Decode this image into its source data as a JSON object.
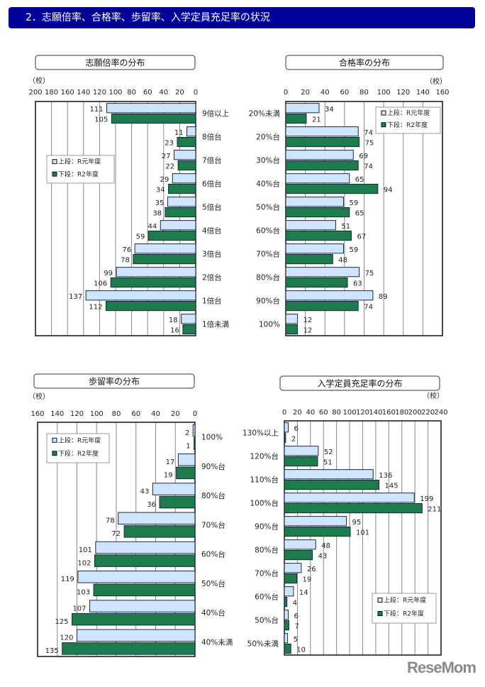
{
  "header": {
    "title": "2．志願倍率、合格率、歩留率、入学定員充足率の状況"
  },
  "watermark": "ReseMom",
  "colors": {
    "header_bg": "#000099",
    "series_r1": "#cfe5ff",
    "series_r2": "#1e7b4e",
    "bar_border": "#1a2a3a",
    "grid": "#888888"
  },
  "chart_data": [
    {
      "type": "bar",
      "orientation": "horizontal",
      "direction": "right-to-left",
      "title": "志願倍率の分布",
      "unit": "（校）",
      "xlim": [
        0,
        200
      ],
      "ticks": [
        "0",
        "20",
        "40",
        "60",
        "80",
        "100",
        "120",
        "140",
        "160",
        "180",
        "200"
      ],
      "categories": [
        "9倍以上",
        "8倍台",
        "7倍台",
        "6倍台",
        "5倍台",
        "4倍台",
        "3倍台",
        "2倍台",
        "1倍台",
        "1倍未満"
      ],
      "series": [
        {
          "name": "上段：R元年度",
          "values": [
            111,
            11,
            27,
            29,
            35,
            44,
            76,
            99,
            137,
            18
          ]
        },
        {
          "name": "下段：R2年度",
          "values": [
            105,
            23,
            22,
            34,
            38,
            59,
            78,
            106,
            112,
            16
          ]
        }
      ],
      "grid": true,
      "legend": "upper-left"
    },
    {
      "type": "bar",
      "orientation": "horizontal",
      "direction": "left-to-right",
      "title": "合格率の分布",
      "unit": "（校）",
      "xlim": [
        0,
        160
      ],
      "ticks": [
        "0",
        "20",
        "40",
        "60",
        "80",
        "100",
        "120",
        "140",
        "160"
      ],
      "categories": [
        "20%未満",
        "20%台",
        "30%台",
        "40%台",
        "50%台",
        "60%台",
        "70%台",
        "80%台",
        "90%台",
        "100%"
      ],
      "series": [
        {
          "name": "上段：R元年度",
          "values": [
            34,
            74,
            69,
            65,
            59,
            51,
            59,
            75,
            89,
            12
          ]
        },
        {
          "name": "下段：R2年度",
          "values": [
            21,
            75,
            74,
            94,
            65,
            67,
            48,
            63,
            74,
            12
          ]
        }
      ],
      "grid": true,
      "legend": "top-right"
    },
    {
      "type": "bar",
      "orientation": "horizontal",
      "direction": "right-to-left",
      "title": "歩留率の分布",
      "unit": "（校）",
      "xlim": [
        0,
        160
      ],
      "ticks": [
        "0",
        "20",
        "40",
        "60",
        "80",
        "100",
        "120",
        "140",
        "160"
      ],
      "categories": [
        "100%",
        "90%台",
        "80%台",
        "70%台",
        "60%台",
        "50%台",
        "40%台",
        "40%未満"
      ],
      "series": [
        {
          "name": "上段：R元年度",
          "values": [
            2,
            17,
            43,
            78,
            101,
            119,
            107,
            120
          ]
        },
        {
          "name": "下段：R2年度",
          "values": [
            1,
            19,
            36,
            72,
            102,
            103,
            125,
            135
          ]
        }
      ],
      "grid": true,
      "legend": "top-left"
    },
    {
      "type": "bar",
      "orientation": "horizontal",
      "direction": "left-to-right",
      "title": "入学定員充足率の分布",
      "unit": "（校）",
      "xlim": [
        0,
        240
      ],
      "ticks": [
        "0",
        "20",
        "40",
        "60",
        "80",
        "100",
        "120",
        "140",
        "160",
        "180",
        "200",
        "220",
        "240"
      ],
      "categories": [
        "130%以上",
        "120%台",
        "110%台",
        "100%台",
        "90%台",
        "80%台",
        "70%台",
        "60%台",
        "50%台",
        "50%未満"
      ],
      "series": [
        {
          "name": "上段：R元年度",
          "values": [
            6,
            52,
            136,
            199,
            95,
            48,
            26,
            14,
            6,
            5
          ]
        },
        {
          "name": "下段：R2年度",
          "values": [
            2,
            51,
            145,
            211,
            101,
            43,
            19,
            4,
            7,
            10
          ]
        }
      ],
      "grid": true,
      "legend": "bottom-right"
    }
  ]
}
